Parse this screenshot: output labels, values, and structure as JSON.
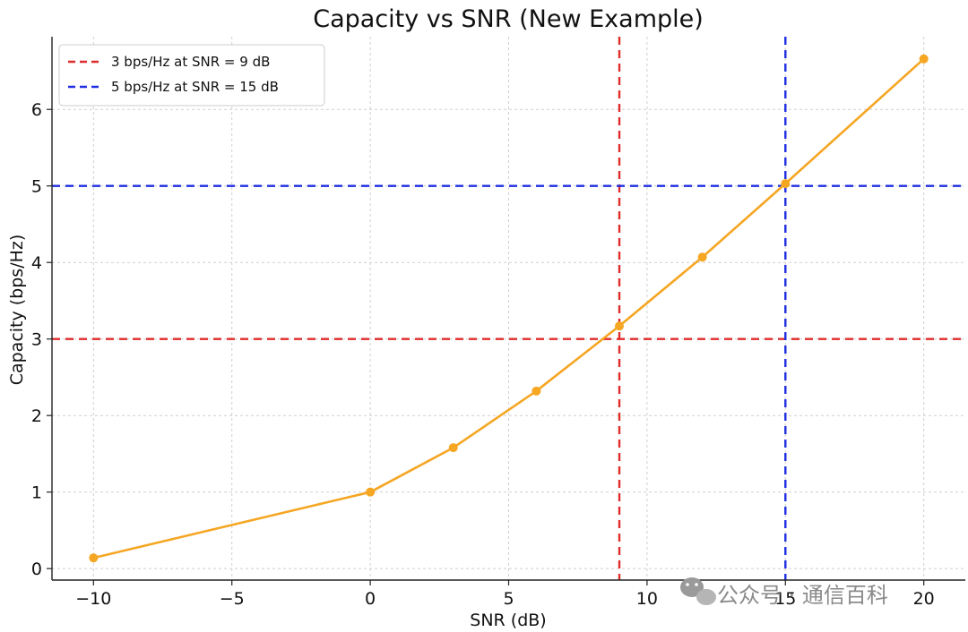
{
  "chart_data": {
    "type": "line",
    "title": "Capacity vs SNR (New Example)",
    "xlabel": "SNR (dB)",
    "ylabel": "Capacity (bps/Hz)",
    "xlim": [
      -11.5,
      21.5
    ],
    "ylim": [
      -0.15,
      6.95
    ],
    "xticks": [
      -10,
      -5,
      0,
      5,
      10,
      15,
      20
    ],
    "xtick_labels": [
      "−10",
      "−5",
      "0",
      "5",
      "10",
      "15",
      "20"
    ],
    "yticks": [
      0,
      1,
      2,
      3,
      4,
      5,
      6
    ],
    "ytick_labels": [
      "0",
      "1",
      "2",
      "3",
      "4",
      "5",
      "6"
    ],
    "grid": true,
    "legend_position": "top-left",
    "series": [
      {
        "name": "Capacity",
        "color": "#f5a623",
        "marker": "circle",
        "x": [
          -10,
          0,
          3,
          6,
          9,
          12,
          15,
          20
        ],
        "y": [
          0.14,
          1.0,
          1.58,
          2.32,
          3.17,
          4.07,
          5.03,
          6.66
        ]
      }
    ],
    "reference_lines": [
      {
        "orientation": "horizontal",
        "value": 3,
        "color": "#e02b2b",
        "style": "dashed",
        "label": "3 bps/Hz at SNR = 9 dB"
      },
      {
        "orientation": "vertical",
        "value": 9,
        "color": "#e02b2b",
        "style": "dashed"
      },
      {
        "orientation": "horizontal",
        "value": 5,
        "color": "#1f2ee0",
        "style": "dashed",
        "label": "5 bps/Hz at SNR = 15 dB"
      },
      {
        "orientation": "vertical",
        "value": 15,
        "color": "#1f2ee0",
        "style": "dashed"
      }
    ]
  },
  "watermark": {
    "text": "公众号 · 通信百科",
    "icon": "wechat-icon"
  }
}
